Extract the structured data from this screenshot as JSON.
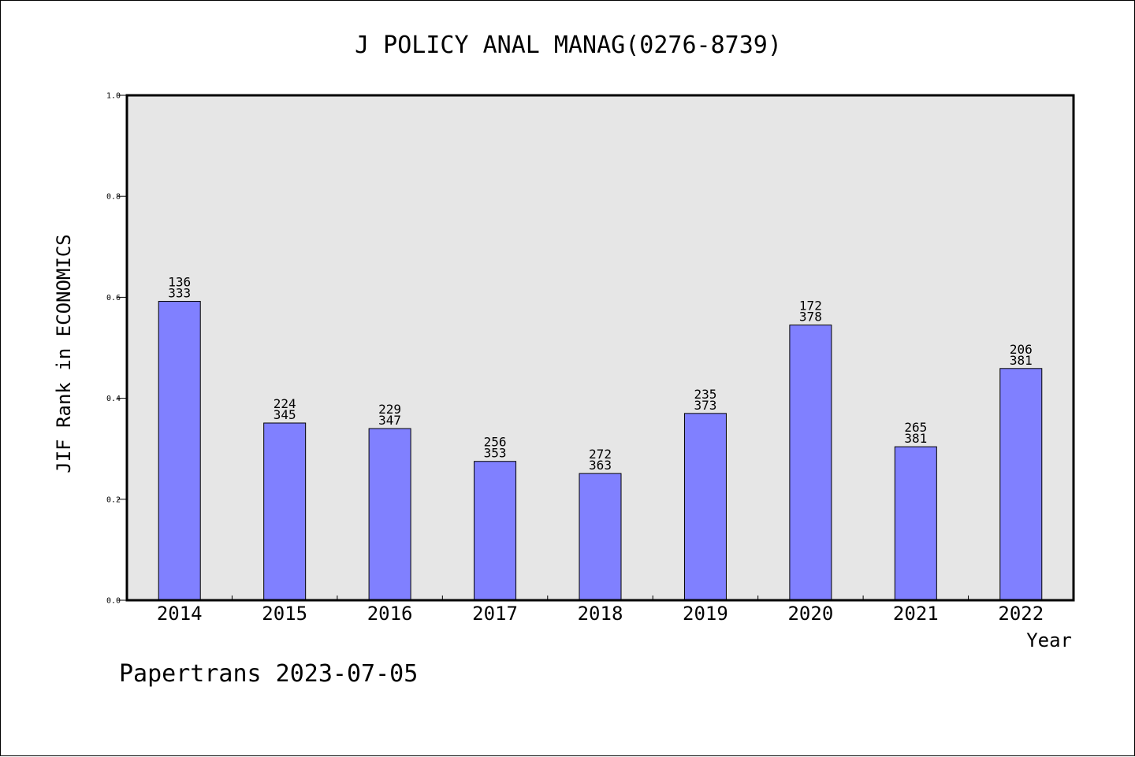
{
  "chart_data": {
    "type": "bar",
    "title": "J POLICY ANAL MANAG(0276-8739)",
    "xlabel": "Year",
    "ylabel": "JIF Rank in ECONOMICS",
    "ylim": [
      0,
      1.0
    ],
    "yticks": [
      "0.0",
      "0.2",
      "0.4",
      "0.6",
      "0.8",
      "1.0"
    ],
    "grid": false,
    "categories": [
      "2014",
      "2015",
      "2016",
      "2017",
      "2018",
      "2019",
      "2020",
      "2021",
      "2022"
    ],
    "values": [
      0.592,
      0.351,
      0.34,
      0.275,
      0.251,
      0.37,
      0.545,
      0.304,
      0.459
    ],
    "rank_labels": [
      "136",
      "224",
      "229",
      "256",
      "272",
      "235",
      "172",
      "265",
      "206"
    ],
    "total_labels": [
      "333",
      "345",
      "347",
      "353",
      "363",
      "373",
      "378",
      "381",
      "381"
    ],
    "bar_color": "#8080ff",
    "plot_background": "#e6e6e6"
  },
  "footer": "Papertrans 2023-07-05"
}
